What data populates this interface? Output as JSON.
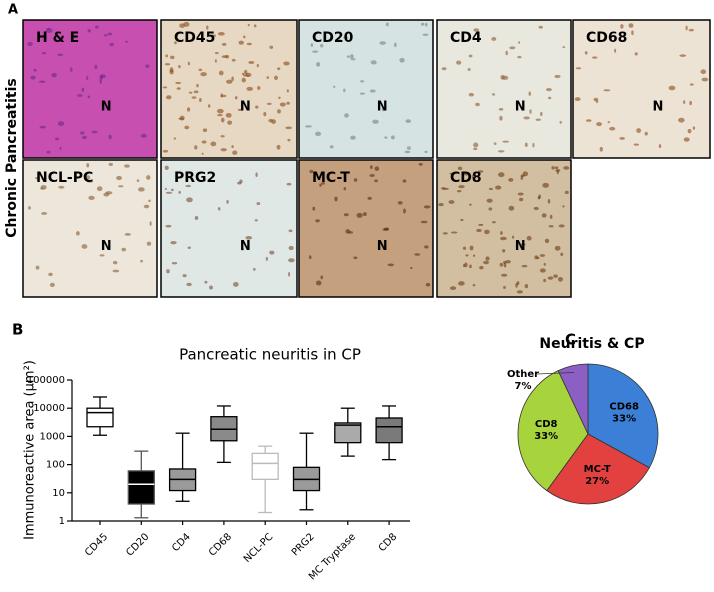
{
  "panel_a": {
    "letter": "A",
    "row_label": "Chronic Pancreatitis",
    "panels": [
      {
        "label": "H & E",
        "marker": "N"
      },
      {
        "label": "CD45",
        "marker": "N"
      },
      {
        "label": "CD20",
        "marker": "N"
      },
      {
        "label": "CD4",
        "marker": "N"
      },
      {
        "label": "CD68",
        "marker": "N"
      },
      {
        "label": "NCL-PC",
        "marker": "N"
      },
      {
        "label": "PRG2",
        "marker": "N"
      },
      {
        "label": "MC-T",
        "marker": "N"
      },
      {
        "label": "CD8",
        "marker": "N"
      }
    ]
  },
  "chart_data": [
    {
      "type": "box",
      "letter": "B",
      "title": "Pancreatic neuritis in CP",
      "y_label": "Immunoreactive area (µm²)",
      "categories": [
        "CD45",
        "CD20",
        "CD4",
        "CD68",
        "NCL-PC",
        "PRG2",
        "MC Tryptase",
        "CD8"
      ],
      "min": [
        1100,
        1.3,
        5,
        120,
        2,
        2.5,
        200,
        150
      ],
      "q1": [
        2200,
        4,
        12,
        700,
        30,
        12,
        600,
        600
      ],
      "median": [
        7000,
        20,
        30,
        1800,
        110,
        30,
        2500,
        2200
      ],
      "q3": [
        10000,
        60,
        70,
        5000,
        250,
        80,
        3000,
        4500
      ],
      "max": [
        25000,
        300,
        1300,
        12000,
        450,
        1300,
        10000,
        12000
      ],
      "fill": [
        "#ffffff",
        "#000000",
        "#9a9a9a",
        "#8a8a8a",
        "#ffffff",
        "#9a9a9a",
        "#aaaaaa",
        "#7a7a7a"
      ],
      "stroke": [
        "#000000",
        "#555555",
        "#000000",
        "#000000",
        "#bbbbbb",
        "#000000",
        "#000000",
        "#000000"
      ],
      "log_scale": true,
      "ylim": [
        1,
        100000
      ],
      "yticks": [
        1,
        10,
        100,
        1000,
        10000,
        100000
      ]
    },
    {
      "type": "pie",
      "letter": "C",
      "title": "Neuritis & CP",
      "categories": [
        "CD68",
        "MC-T",
        "CD8",
        "Other"
      ],
      "values": [
        33,
        27,
        33,
        7
      ],
      "value_labels": [
        "33%",
        "27%",
        "33%",
        "7%"
      ],
      "colors": [
        "#3b80d6",
        "#e2413f",
        "#a7d33c",
        "#8b5fc3"
      ]
    }
  ]
}
